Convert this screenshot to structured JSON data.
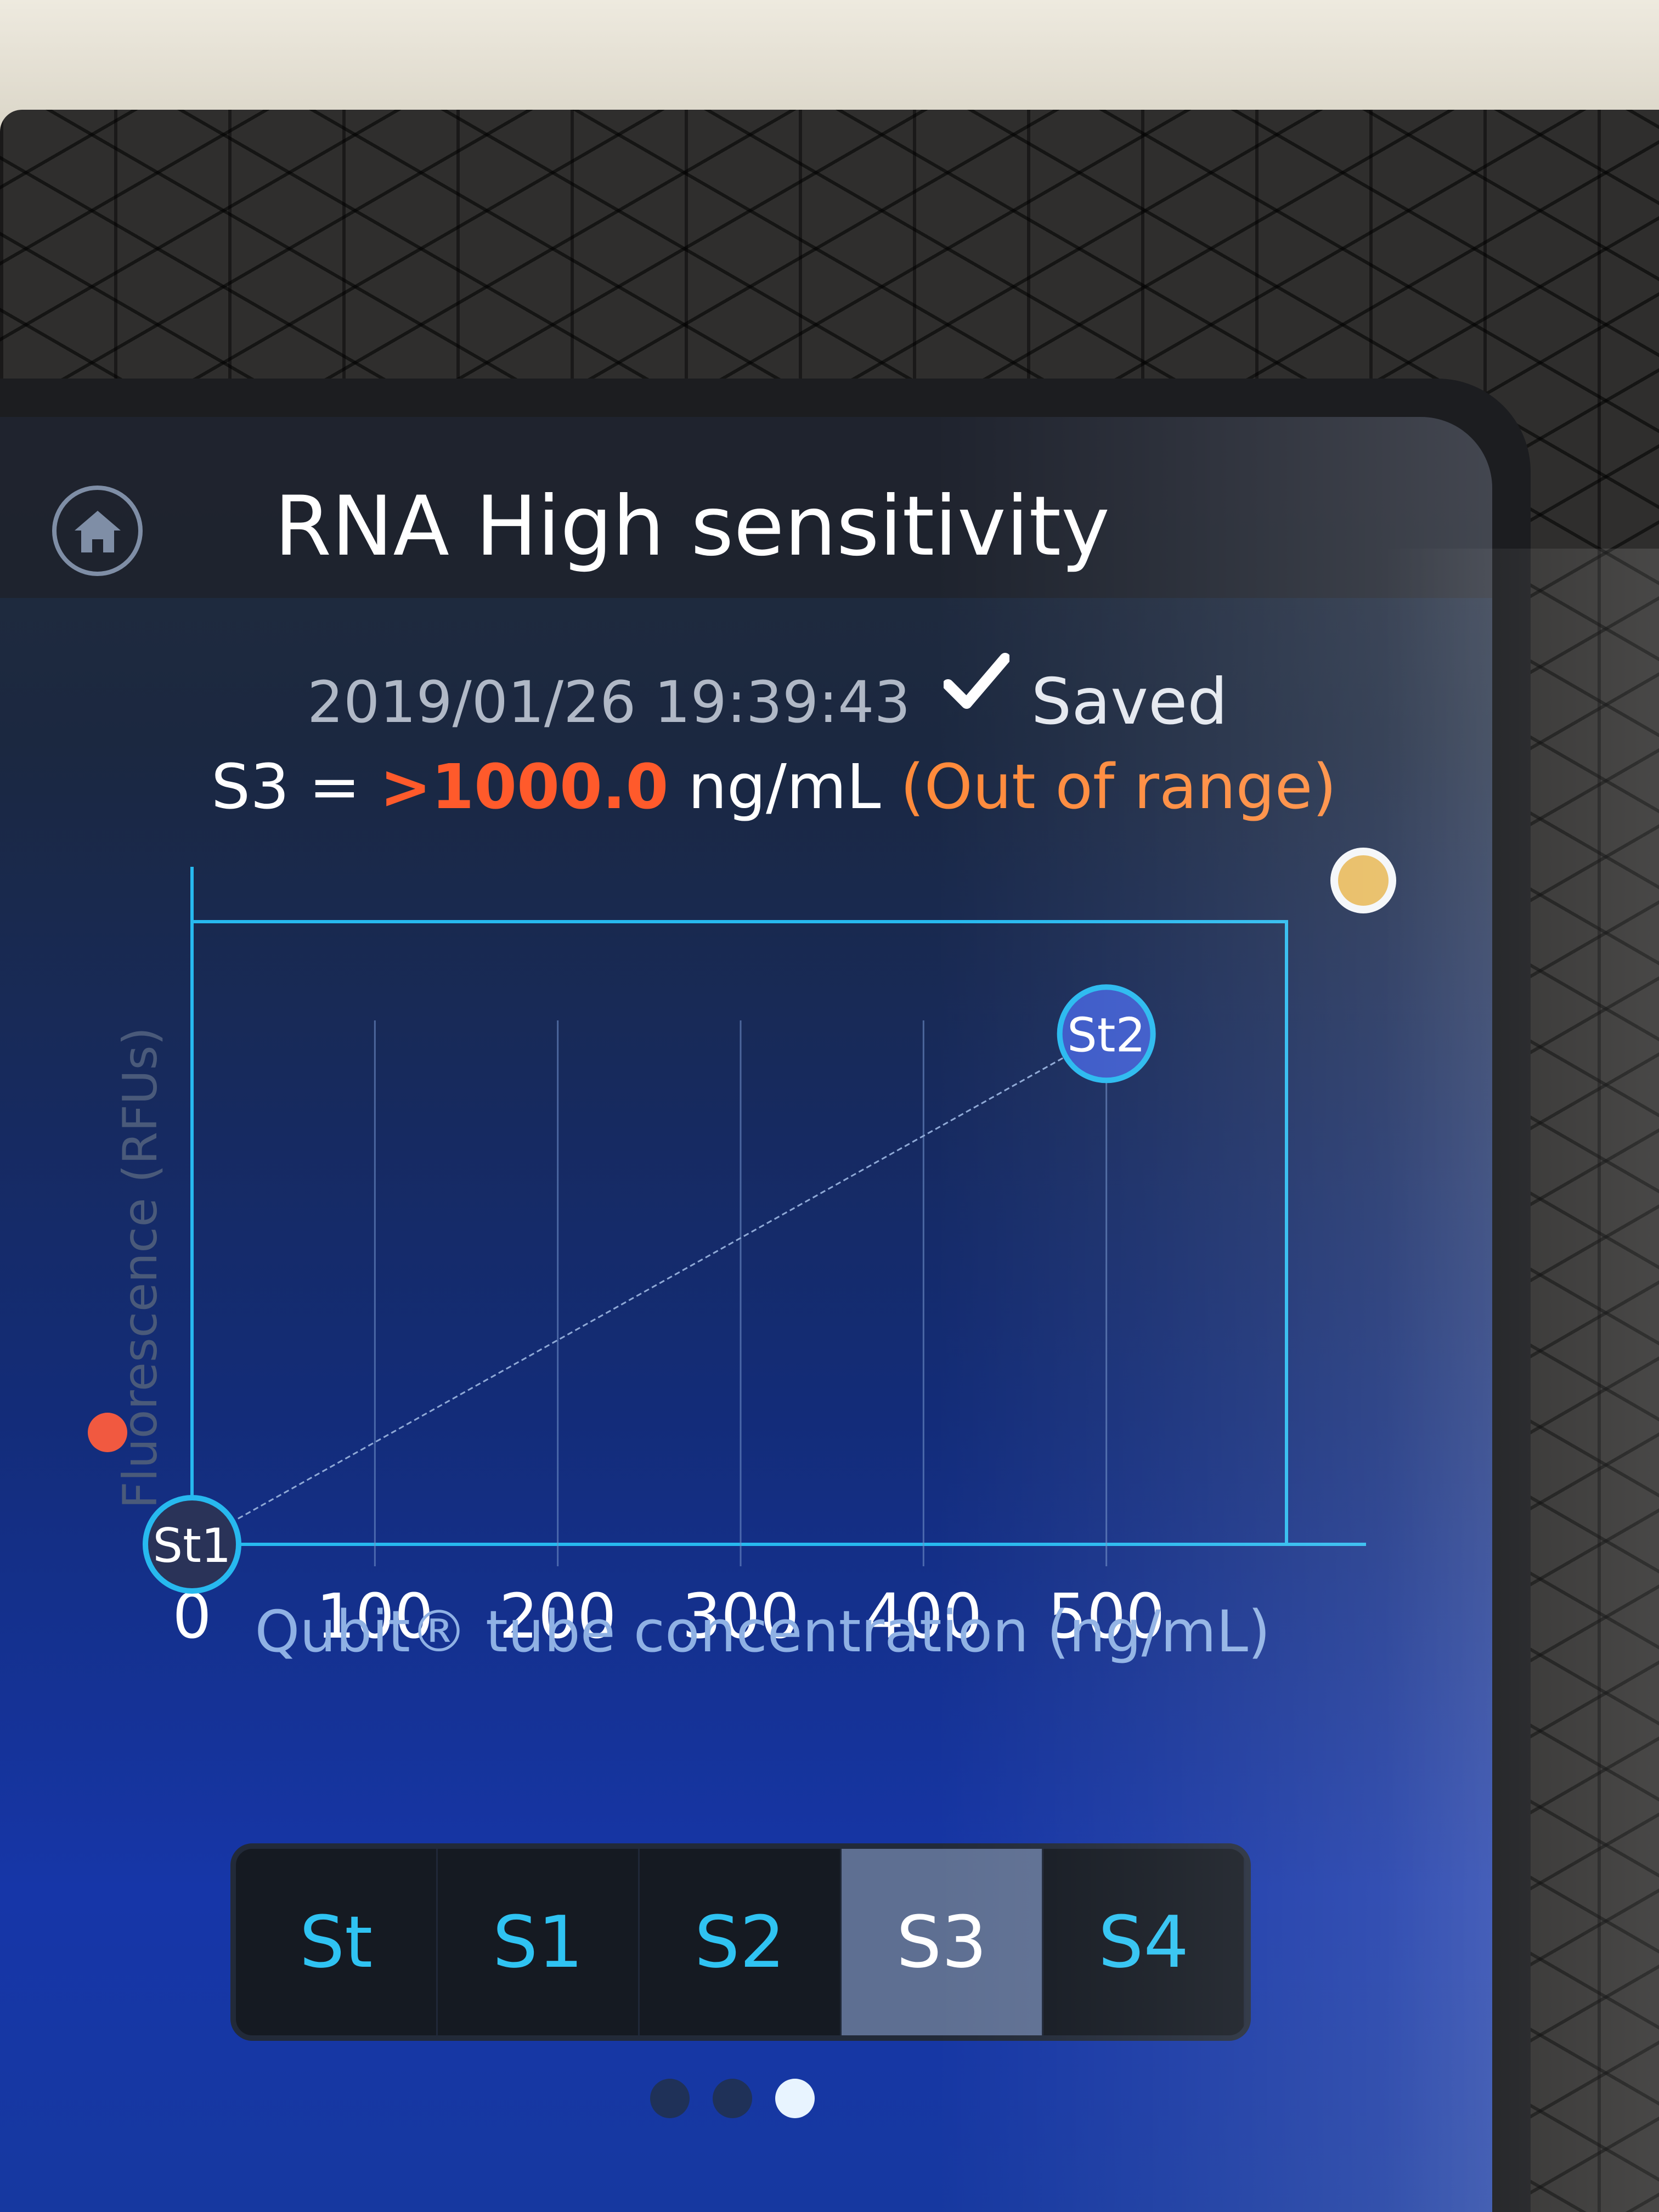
{
  "header": {
    "title": "RNA High sensitivity"
  },
  "status": {
    "timestamp": "2019/01/26 19:39:43",
    "saved_label": "Saved"
  },
  "result": {
    "sample": "S3 =",
    "value": ">1000.0",
    "unit": "ng/mL",
    "status": "(Out of range)"
  },
  "chart_data": {
    "type": "line",
    "title": "",
    "xlabel": "Qubit® tube concentration (ng/mL)",
    "ylabel": "Fluorescence (RFUs)",
    "x_ticks": [
      "0",
      "100",
      "200",
      "300",
      "400",
      "500"
    ],
    "xlim": [
      0,
      600
    ],
    "ylim": [
      0,
      100
    ],
    "grid": true,
    "series": [
      {
        "values": [
          [
            0,
            0
          ],
          [
            500,
            82
          ]
        ]
      }
    ],
    "points": [
      {
        "label": "St1",
        "x": 0,
        "y": 0
      },
      {
        "label": "St2",
        "x": 500,
        "y": 82
      }
    ]
  },
  "tabs": {
    "items": [
      "St",
      "S1",
      "S2",
      "S3",
      "S4"
    ],
    "active": "S3"
  },
  "pager": {
    "count": 3,
    "active": 3
  },
  "colors": {
    "axis": "#27b9ef",
    "accent": "#2fc3f2",
    "error": "#ff5a2b",
    "status_yellow": "#e7b95a",
    "status_red": "#f15940"
  }
}
